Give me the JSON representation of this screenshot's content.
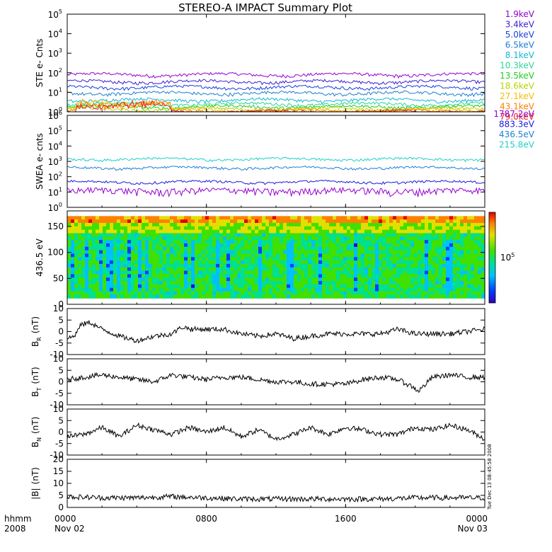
{
  "title": "STEREO-A IMPACT Summary Plot",
  "stamp": "Tue Dec 13 08:45:58 2008",
  "x_axis": {
    "corner_labels": [
      "hhmm",
      "2008"
    ],
    "ticks": [
      {
        "hour": 0,
        "time": "0000",
        "date": "Nov 02"
      },
      {
        "hour": 8,
        "time": "0800",
        "date": ""
      },
      {
        "hour": 16,
        "time": "1600",
        "date": ""
      },
      {
        "hour": 24,
        "time": "0000",
        "date": "Nov 03"
      }
    ],
    "xlim": [
      0,
      24
    ]
  },
  "colorbar": {
    "label": "10",
    "label_exp": "5"
  },
  "chart_data": [
    {
      "type": "line",
      "ylabel": "STE e- Cnts",
      "yscale": "log",
      "ylim_exp": [
        0,
        5
      ],
      "yticks_exp": [
        0,
        1,
        2,
        3,
        4,
        5
      ],
      "legend_placement": "right",
      "series": [
        {
          "name": "1.9keV",
          "color": "#9400d3",
          "typical": 80
        },
        {
          "name": "3.4keV",
          "color": "#3b1fd1",
          "typical": 35
        },
        {
          "name": "5.0keV",
          "color": "#1a3fe0",
          "typical": 18
        },
        {
          "name": "6.5keV",
          "color": "#1f7fcf",
          "typical": 9
        },
        {
          "name": "8.1keV",
          "color": "#12b8d6",
          "typical": 4
        },
        {
          "name": "10.3keV",
          "color": "#2fd49a",
          "typical": 2.5
        },
        {
          "name": "13.5keV",
          "color": "#22cc22",
          "typical": 1.8
        },
        {
          "name": "18.6keV",
          "color": "#b8d400",
          "typical": 1.4
        },
        {
          "name": "27.1keV",
          "color": "#f0c000",
          "typical": 1.2
        },
        {
          "name": "43.1keV",
          "color": "#ff8000",
          "typical": 1.1
        },
        {
          "name": "79.0keV",
          "color": "#e82020",
          "typical": 1.0
        }
      ]
    },
    {
      "type": "line",
      "ylabel": "SWEA e- cnts",
      "yscale": "log",
      "ylim_exp": [
        0,
        6
      ],
      "yticks_exp": [
        0,
        1,
        2,
        3,
        4,
        5,
        6
      ],
      "legend_placement": "right",
      "series": [
        {
          "name": "1787.2eV",
          "color": "#9400d3",
          "typical": 12
        },
        {
          "name": "883.3eV",
          "color": "#1a1adb",
          "typical": 45
        },
        {
          "name": "436.5eV",
          "color": "#1f7fd8",
          "typical": 380
        },
        {
          "name": "215.8eV",
          "color": "#20d0c8",
          "typical": 1400
        }
      ]
    },
    {
      "type": "heatmap",
      "ylabel": "436.5 eV",
      "ylim": [
        0,
        180
      ],
      "yticks": [
        0,
        50,
        100,
        150
      ],
      "colorscale": [
        "#3000c0",
        "#0040ff",
        "#00c0ff",
        "#00e090",
        "#40e000",
        "#e0e000",
        "#ff8000",
        "#e00000"
      ]
    },
    {
      "type": "line",
      "ylabel": "B",
      "ylabel_sub": "R",
      "ylabel_unit": "(nT)",
      "ylim": [
        -10,
        10
      ],
      "yticks": [
        -10,
        -5,
        0,
        5,
        10
      ],
      "series": [
        {
          "name": "",
          "color": "#000000",
          "samples": [
            {
              "x": 0.0,
              "y": -3
            },
            {
              "x": 0.4,
              "y": -2
            },
            {
              "x": 0.8,
              "y": 3
            },
            {
              "x": 1.3,
              "y": 4
            },
            {
              "x": 2.0,
              "y": 1
            },
            {
              "x": 3.0,
              "y": -2
            },
            {
              "x": 4.0,
              "y": -4
            },
            {
              "x": 5.0,
              "y": -2
            },
            {
              "x": 6.0,
              "y": -1
            },
            {
              "x": 6.6,
              "y": 2
            },
            {
              "x": 7.2,
              "y": 1
            },
            {
              "x": 8.0,
              "y": 1
            },
            {
              "x": 9.0,
              "y": 1
            },
            {
              "x": 10.0,
              "y": -1
            },
            {
              "x": 11.0,
              "y": -2
            },
            {
              "x": 12.0,
              "y": -1
            },
            {
              "x": 13.0,
              "y": -3
            },
            {
              "x": 14.0,
              "y": -2
            },
            {
              "x": 15.0,
              "y": -1
            },
            {
              "x": 16.0,
              "y": -1
            },
            {
              "x": 17.0,
              "y": -1
            },
            {
              "x": 18.0,
              "y": -1
            },
            {
              "x": 19.0,
              "y": 1
            },
            {
              "x": 20.0,
              "y": -1
            },
            {
              "x": 21.0,
              "y": -1
            },
            {
              "x": 22.0,
              "y": -1
            },
            {
              "x": 23.0,
              "y": 0
            },
            {
              "x": 24.0,
              "y": 1
            }
          ]
        }
      ]
    },
    {
      "type": "line",
      "ylabel": "B",
      "ylabel_sub": "T",
      "ylabel_unit": "(nT)",
      "ylim": [
        -10,
        10
      ],
      "yticks": [
        -10,
        -5,
        0,
        5,
        10
      ],
      "series": [
        {
          "name": "",
          "color": "#000000",
          "samples": [
            {
              "x": 0.0,
              "y": 1
            },
            {
              "x": 1.0,
              "y": 2
            },
            {
              "x": 2.0,
              "y": 3
            },
            {
              "x": 3.0,
              "y": 2
            },
            {
              "x": 4.0,
              "y": 1
            },
            {
              "x": 5.0,
              "y": 0
            },
            {
              "x": 6.0,
              "y": 3
            },
            {
              "x": 7.0,
              "y": 2
            },
            {
              "x": 8.0,
              "y": 1
            },
            {
              "x": 9.0,
              "y": 2
            },
            {
              "x": 10.0,
              "y": 2
            },
            {
              "x": 11.0,
              "y": 1
            },
            {
              "x": 12.0,
              "y": 0
            },
            {
              "x": 13.0,
              "y": 0
            },
            {
              "x": 14.0,
              "y": -1
            },
            {
              "x": 15.0,
              "y": -1
            },
            {
              "x": 16.0,
              "y": -1
            },
            {
              "x": 17.0,
              "y": 1
            },
            {
              "x": 18.0,
              "y": 2
            },
            {
              "x": 19.0,
              "y": 1
            },
            {
              "x": 19.8,
              "y": -2
            },
            {
              "x": 20.2,
              "y": -4
            },
            {
              "x": 21.0,
              "y": 2
            },
            {
              "x": 22.0,
              "y": 3
            },
            {
              "x": 23.0,
              "y": 2
            },
            {
              "x": 24.0,
              "y": 2
            }
          ]
        }
      ]
    },
    {
      "type": "line",
      "ylabel": "B",
      "ylabel_sub": "N",
      "ylabel_unit": "(nT)",
      "ylim": [
        -10,
        10
      ],
      "yticks": [
        -10,
        -5,
        0,
        5,
        10
      ],
      "series": [
        {
          "name": "",
          "color": "#000000",
          "samples": [
            {
              "x": 0.0,
              "y": -2
            },
            {
              "x": 1.0,
              "y": -1
            },
            {
              "x": 2.0,
              "y": 2
            },
            {
              "x": 3.0,
              "y": -2
            },
            {
              "x": 4.0,
              "y": 3
            },
            {
              "x": 5.0,
              "y": 1
            },
            {
              "x": 6.0,
              "y": -1
            },
            {
              "x": 7.0,
              "y": 2
            },
            {
              "x": 8.0,
              "y": 0
            },
            {
              "x": 9.0,
              "y": 2
            },
            {
              "x": 10.0,
              "y": -2
            },
            {
              "x": 11.0,
              "y": 1
            },
            {
              "x": 12.0,
              "y": -3
            },
            {
              "x": 13.0,
              "y": -1
            },
            {
              "x": 14.0,
              "y": 2
            },
            {
              "x": 15.0,
              "y": -1
            },
            {
              "x": 16.0,
              "y": 2
            },
            {
              "x": 17.0,
              "y": 1
            },
            {
              "x": 18.0,
              "y": -1
            },
            {
              "x": 19.0,
              "y": -1
            },
            {
              "x": 20.0,
              "y": 2
            },
            {
              "x": 21.0,
              "y": 1
            },
            {
              "x": 22.0,
              "y": 3
            },
            {
              "x": 23.0,
              "y": 1
            },
            {
              "x": 24.0,
              "y": -3
            }
          ]
        }
      ]
    },
    {
      "type": "line",
      "ylabel": "|B|",
      "ylabel_unit": "(nT)",
      "ylim": [
        0,
        20
      ],
      "yticks": [
        0,
        5,
        10,
        15,
        20
      ],
      "series": [
        {
          "name": "",
          "color": "#000000",
          "samples": [
            {
              "x": 0.0,
              "y": 4.5
            },
            {
              "x": 2.0,
              "y": 4
            },
            {
              "x": 4.0,
              "y": 4
            },
            {
              "x": 6.0,
              "y": 4.5
            },
            {
              "x": 8.0,
              "y": 4
            },
            {
              "x": 10.0,
              "y": 3.5
            },
            {
              "x": 12.0,
              "y": 3.5
            },
            {
              "x": 14.0,
              "y": 3.5
            },
            {
              "x": 16.0,
              "y": 3.5
            },
            {
              "x": 18.0,
              "y": 3.5
            },
            {
              "x": 20.0,
              "y": 4
            },
            {
              "x": 22.0,
              "y": 4
            },
            {
              "x": 24.0,
              "y": 4
            }
          ]
        }
      ]
    }
  ]
}
